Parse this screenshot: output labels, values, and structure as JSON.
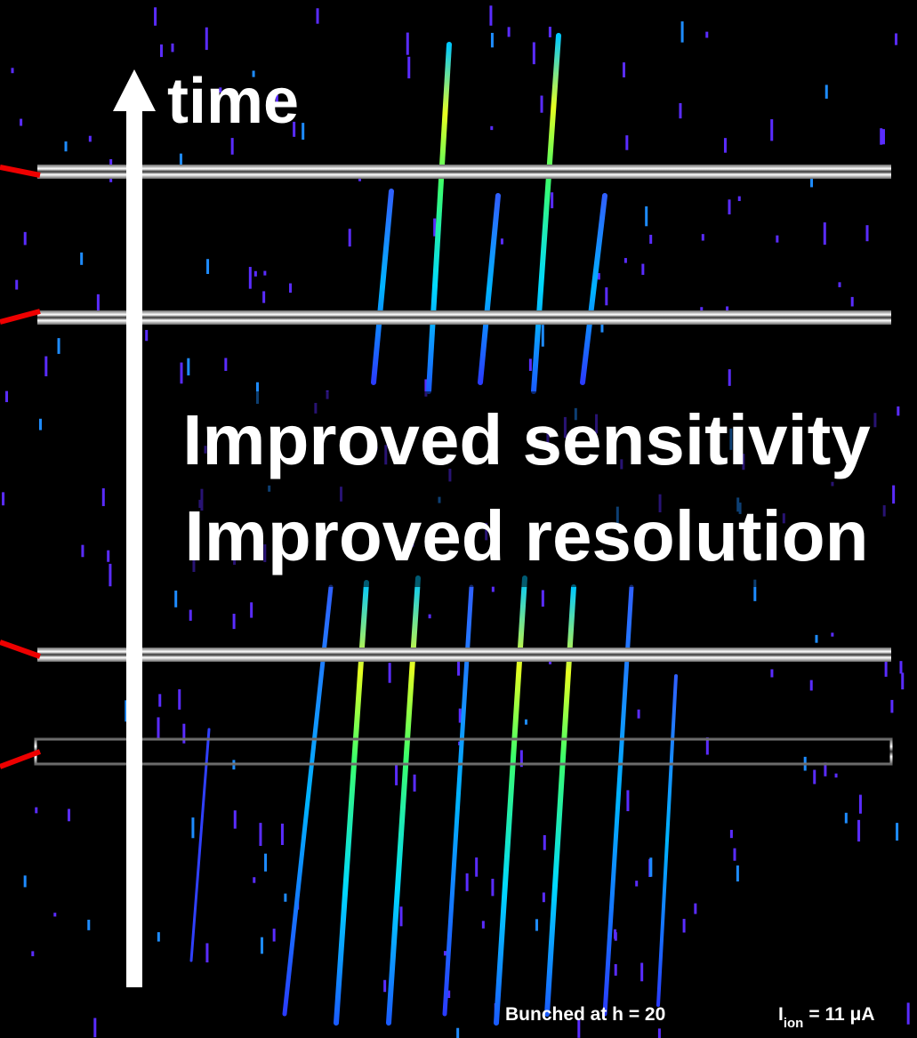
{
  "axis_label": "time",
  "headline": {
    "line1": "Improved sensitivity",
    "line2": "Improved resolution"
  },
  "footer": {
    "condition": "Bunched at h = 20",
    "current": {
      "symbol": "I",
      "subscript": "ion",
      "value": "= 11 μA"
    }
  }
}
